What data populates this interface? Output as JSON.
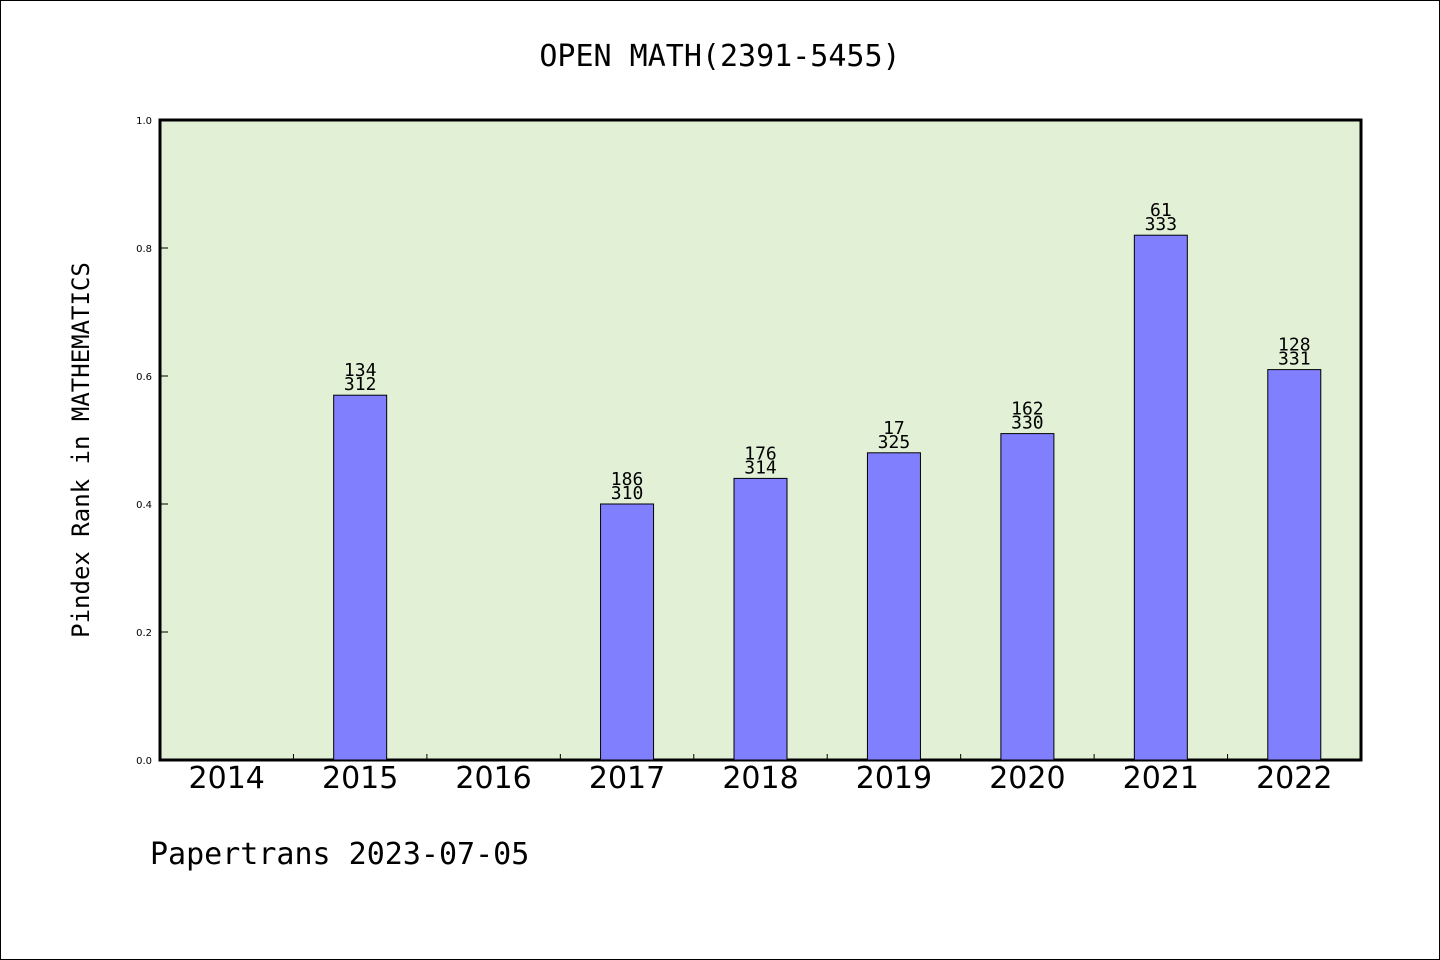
{
  "chart_data": {
    "type": "bar",
    "title": "OPEN MATH(2391-5455)",
    "xlabel": "",
    "ylabel": "Pindex Rank in MATHEMATICS",
    "categories": [
      "2014",
      "2015",
      "2016",
      "2017",
      "2018",
      "2019",
      "2020",
      "2021",
      "2022"
    ],
    "values": [
      null,
      0.57,
      null,
      0.4,
      0.44,
      0.48,
      0.51,
      0.82,
      0.61
    ],
    "label_top": [
      "",
      "134",
      "",
      "186",
      "176",
      "17",
      "162",
      "61",
      "128"
    ],
    "label_bottom": [
      "",
      "312",
      "",
      "310",
      "314",
      "325",
      "330",
      "333",
      "331"
    ],
    "ylim": [
      0,
      1.0
    ],
    "yticks": [
      "0.0",
      "0.2",
      "0.4",
      "0.6",
      "0.8",
      "1.0"
    ],
    "grid": false,
    "plot_background": "#e2f0d6",
    "bar_color": "#8080ff"
  },
  "footer": "Papertrans 2023-07-05"
}
